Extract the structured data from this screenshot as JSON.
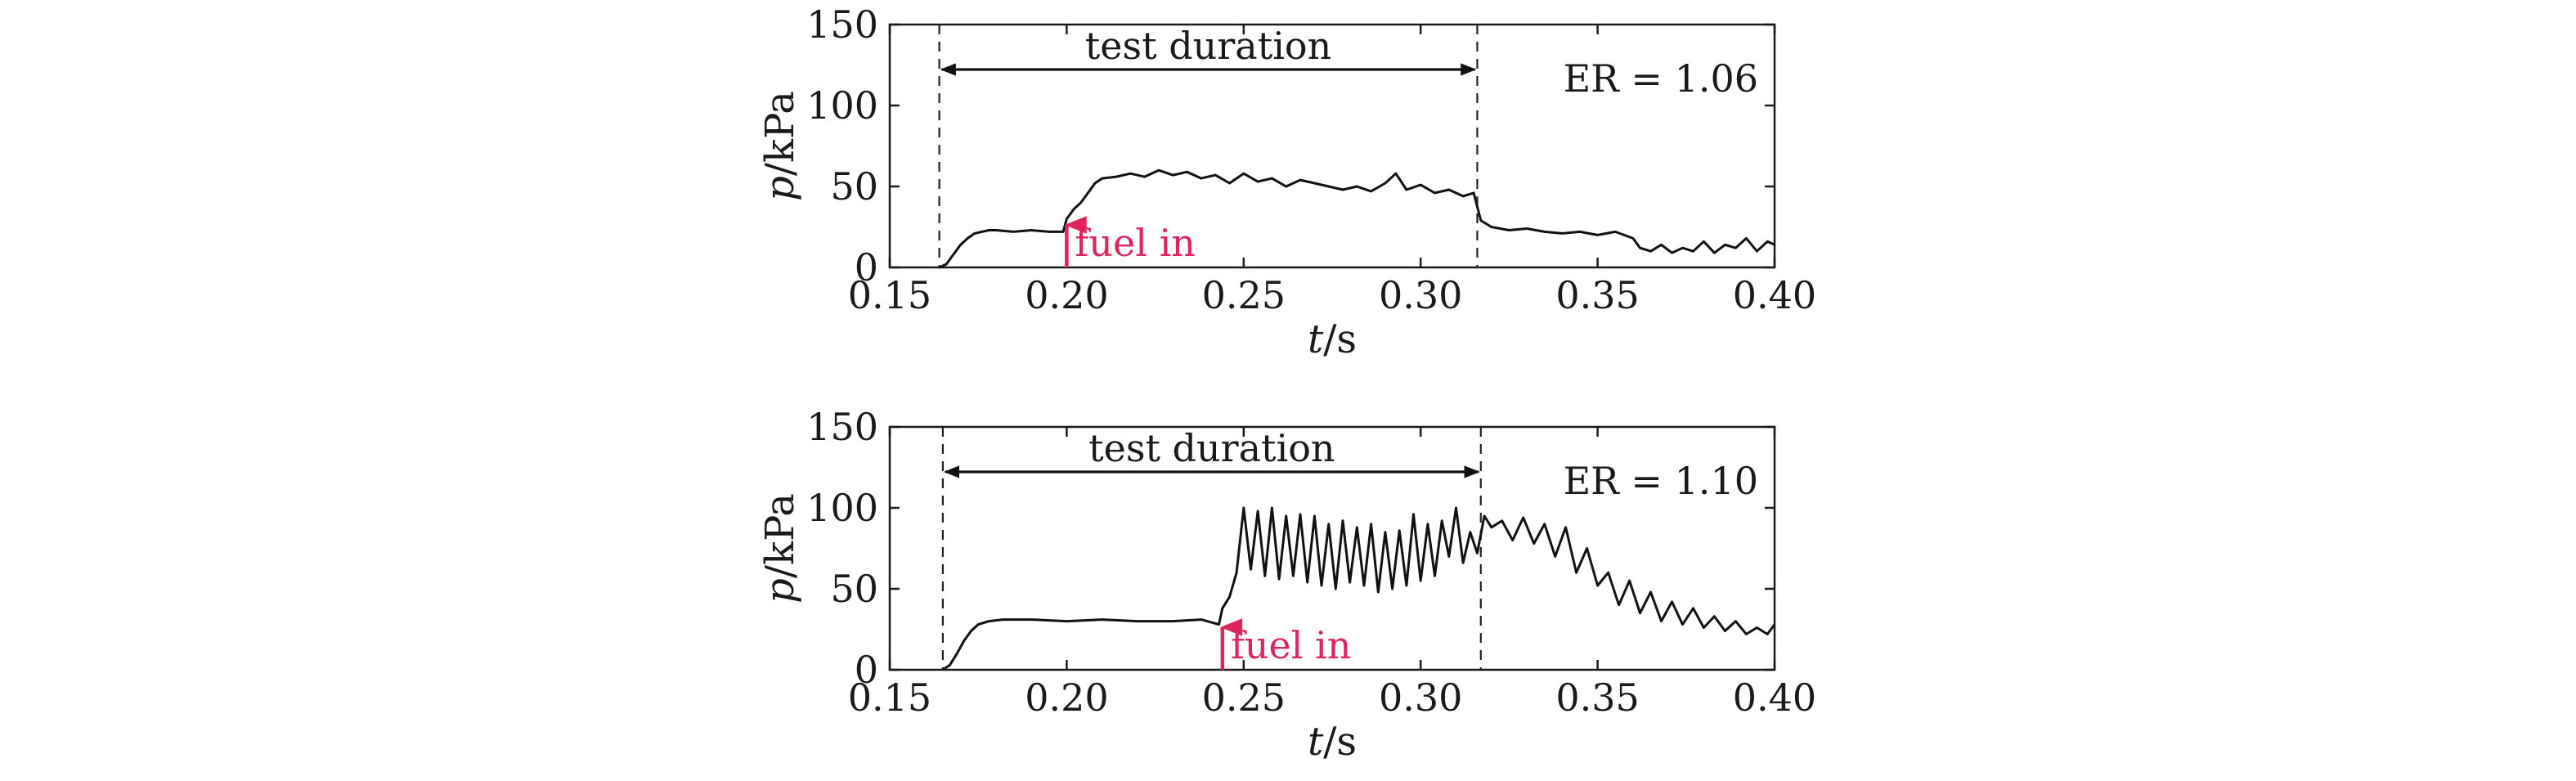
{
  "chart_data": [
    {
      "type": "line",
      "xlabel_italic": "t",
      "xlabel_unit": "/s",
      "ylabel_italic": "p",
      "ylabel_unit": "/kPa",
      "xlim": [
        0.15,
        0.4
      ],
      "ylim": [
        0,
        150
      ],
      "xticks": [
        "0.15",
        "0.20",
        "0.25",
        "0.30",
        "0.35",
        "0.40"
      ],
      "yticks": [
        "0",
        "50",
        "100",
        "150"
      ],
      "annotation": "ER = 1.06",
      "duration_label": "test duration",
      "duration": [
        0.164,
        0.316
      ],
      "fuel_label": "fuel in",
      "fuel_time": 0.2,
      "fuel_color": "#e0245e",
      "series": [
        {
          "x": [
            0.164,
            0.166,
            0.168,
            0.17,
            0.172,
            0.174,
            0.176,
            0.178,
            0.18,
            0.185,
            0.19,
            0.195,
            0.199,
            0.2,
            0.202,
            0.204,
            0.206,
            0.208,
            0.21,
            0.214,
            0.218,
            0.222,
            0.226,
            0.23,
            0.234,
            0.238,
            0.242,
            0.246,
            0.25,
            0.254,
            0.258,
            0.262,
            0.266,
            0.27,
            0.274,
            0.278,
            0.282,
            0.286,
            0.29,
            0.293,
            0.296,
            0.3,
            0.304,
            0.308,
            0.312,
            0.315,
            0.317,
            0.32,
            0.325,
            0.33,
            0.335,
            0.34,
            0.345,
            0.35,
            0.355,
            0.36,
            0.362,
            0.365,
            0.368,
            0.371,
            0.374,
            0.377,
            0.38,
            0.383,
            0.386,
            0.389,
            0.392,
            0.395,
            0.398,
            0.4
          ],
          "values": [
            0,
            2,
            8,
            14,
            18,
            21,
            22,
            23,
            23,
            22,
            23,
            22,
            22,
            30,
            36,
            40,
            46,
            52,
            55,
            56,
            58,
            56,
            60,
            57,
            59,
            55,
            57,
            52,
            58,
            53,
            55,
            50,
            54,
            52,
            50,
            48,
            50,
            47,
            52,
            58,
            48,
            51,
            46,
            48,
            44,
            46,
            29,
            25,
            23,
            24,
            22,
            21,
            22,
            20,
            22,
            18,
            12,
            10,
            14,
            9,
            12,
            10,
            16,
            9,
            14,
            12,
            18,
            10,
            16,
            14
          ]
        }
      ]
    },
    {
      "type": "line",
      "xlabel_italic": "t",
      "xlabel_unit": "/s",
      "ylabel_italic": "p",
      "ylabel_unit": "/kPa",
      "xlim": [
        0.15,
        0.4
      ],
      "ylim": [
        0,
        150
      ],
      "xticks": [
        "0.15",
        "0.20",
        "0.25",
        "0.30",
        "0.35",
        "0.40"
      ],
      "yticks": [
        "0",
        "50",
        "100",
        "150"
      ],
      "annotation": "ER = 1.10",
      "duration_label": "test duration",
      "duration": [
        0.165,
        0.317
      ],
      "fuel_label": "fuel in",
      "fuel_time": 0.244,
      "fuel_color": "#e0245e",
      "series": [
        {
          "x": [
            0.165,
            0.167,
            0.169,
            0.171,
            0.173,
            0.175,
            0.178,
            0.182,
            0.19,
            0.2,
            0.21,
            0.22,
            0.23,
            0.238,
            0.243,
            0.244,
            0.246,
            0.248,
            0.25,
            0.252,
            0.254,
            0.256,
            0.258,
            0.26,
            0.262,
            0.264,
            0.266,
            0.268,
            0.27,
            0.272,
            0.274,
            0.276,
            0.278,
            0.28,
            0.282,
            0.284,
            0.286,
            0.288,
            0.29,
            0.292,
            0.294,
            0.296,
            0.298,
            0.3,
            0.302,
            0.304,
            0.306,
            0.308,
            0.31,
            0.312,
            0.314,
            0.316,
            0.318,
            0.32,
            0.323,
            0.326,
            0.329,
            0.332,
            0.335,
            0.338,
            0.341,
            0.344,
            0.347,
            0.35,
            0.353,
            0.356,
            0.359,
            0.362,
            0.365,
            0.368,
            0.371,
            0.374,
            0.377,
            0.38,
            0.383,
            0.386,
            0.389,
            0.392,
            0.395,
            0.398,
            0.4
          ],
          "values": [
            0,
            3,
            10,
            18,
            24,
            28,
            30,
            31,
            31,
            30,
            31,
            30,
            30,
            31,
            28,
            38,
            45,
            60,
            100,
            62,
            98,
            58,
            100,
            56,
            95,
            58,
            96,
            54,
            95,
            52,
            90,
            50,
            92,
            54,
            88,
            52,
            90,
            48,
            85,
            50,
            86,
            52,
            96,
            55,
            90,
            58,
            92,
            70,
            100,
            66,
            85,
            72,
            95,
            88,
            92,
            80,
            94,
            78,
            90,
            70,
            88,
            60,
            75,
            52,
            60,
            40,
            55,
            35,
            48,
            30,
            42,
            28,
            38,
            26,
            33,
            24,
            30,
            22,
            26,
            22,
            28
          ]
        }
      ]
    }
  ]
}
